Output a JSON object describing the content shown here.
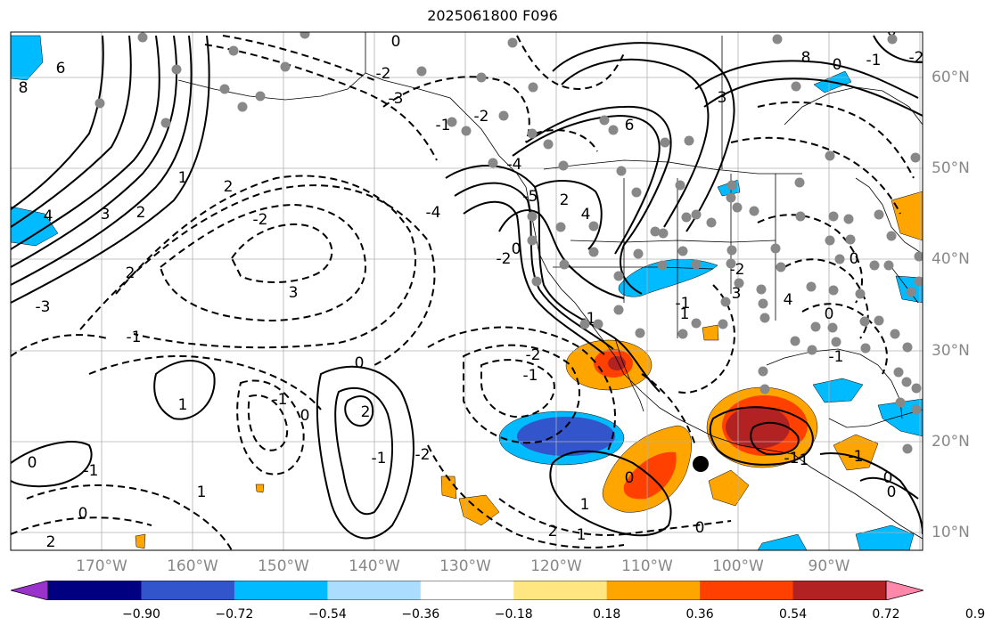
{
  "title": "2025061800 F096",
  "latitudes": [
    "60°N",
    "50°N",
    "40°N",
    "30°N",
    "20°N",
    "10°N"
  ],
  "longitudes": [
    "170°W",
    "160°W",
    "150°W",
    "140°W",
    "130°W",
    "120°W",
    "110°W",
    "100°W",
    "90°W"
  ],
  "contour_labels": [
    "6",
    "8",
    "3",
    "2",
    "1",
    "2",
    "4",
    "3",
    "2",
    "-1",
    "-2",
    "-3",
    "-4",
    "0",
    "-2",
    "-3",
    "-2",
    "-1",
    "-4",
    "-2",
    "2",
    "4",
    "6",
    "3",
    "-5",
    "0",
    "-1",
    "0",
    "2",
    "1",
    "-1",
    "0",
    "-1",
    "-2",
    "-1",
    "-2",
    "-1",
    "0",
    "1",
    "0",
    "2",
    "2",
    "1",
    "1",
    "0",
    "0",
    "-1",
    "1",
    "-1",
    "0",
    "0",
    "-1",
    "0",
    "0",
    "-1",
    "1",
    "-2",
    "3",
    "4",
    "6",
    "8",
    "0",
    "-1",
    "-2"
  ],
  "colorbar": {
    "ticks": [
      "−0.90",
      "−0.72",
      "−0.54",
      "−0.36",
      "−0.18",
      "0.18",
      "0.36",
      "0.54",
      "0.72",
      "0.90"
    ],
    "colors": [
      "#9933cc",
      "#000080",
      "#3355cc",
      "#00bbff",
      "#aaddff",
      "#ffffff",
      "#ffe680",
      "#ffa500",
      "#ff4000",
      "#b22222",
      "#ff88aa"
    ]
  },
  "colors": {
    "contour": "#000000",
    "station": "#888888",
    "grid": "#b0b0b0",
    "marker": "#000000"
  }
}
